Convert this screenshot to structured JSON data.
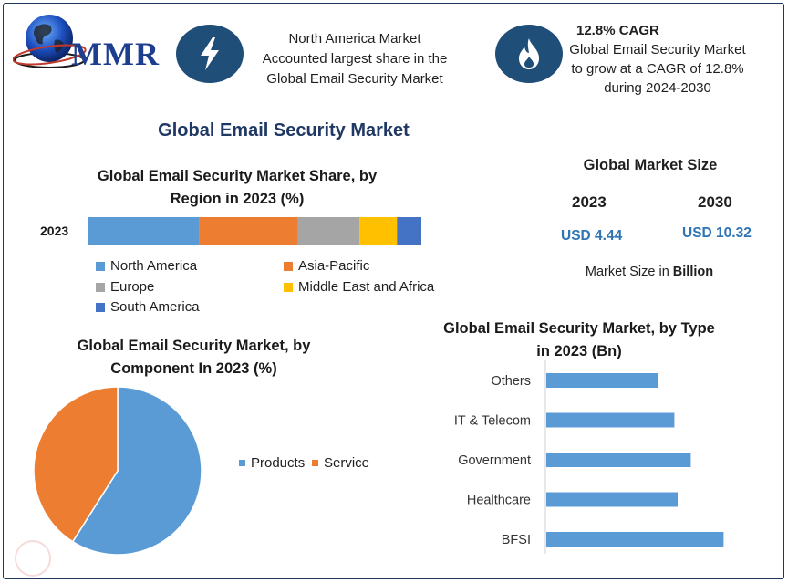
{
  "logo": {
    "text": "MMR"
  },
  "highlight_left": {
    "icon": "lightning-bolt-icon",
    "lines": [
      "North America Market",
      "Accounted largest share in the",
      "Global Email Security Market"
    ]
  },
  "highlight_right": {
    "icon": "flame-icon",
    "title": "12.8% CAGR",
    "lines": [
      "Global Email Security Market",
      "to grow at a CAGR of 12.8%",
      "during 2024-2030"
    ]
  },
  "main_title": "Global Email Security Market",
  "market_size": {
    "title": "Global Market Size",
    "year_a": "2023",
    "year_b": "2030",
    "value_a": "USD 4.44",
    "value_b": "USD 10.32",
    "note_prefix": "Market Size in ",
    "note_bold": "Billion"
  },
  "chart_data": [
    {
      "type": "bar",
      "orientation": "horizontal-stacked",
      "title_lines": [
        "Global Email Security Market Share, by",
        "Region in 2023 (%)"
      ],
      "categories": [
        "2023"
      ],
      "xlim": [
        0,
        100
      ],
      "series": [
        {
          "name": "North America",
          "values": [
            33.5
          ],
          "color": "#5b9bd5"
        },
        {
          "name": "Asia-Pacific",
          "values": [
            29.5
          ],
          "color": "#ed7d31"
        },
        {
          "name": "Europe",
          "values": [
            18.5
          ],
          "color": "#a5a5a5"
        },
        {
          "name": "Middle East and Africa",
          "values": [
            11.2
          ],
          "color": "#ffc000"
        },
        {
          "name": "South America",
          "values": [
            7.3
          ],
          "color": "#4472c4"
        }
      ],
      "legend": "bottom"
    },
    {
      "type": "pie",
      "title_lines": [
        "Global Email Security Market, by",
        "Component In 2023 (%)"
      ],
      "slices": [
        {
          "name": "Products",
          "value": 59,
          "color": "#5b9bd5"
        },
        {
          "name": "Service",
          "value": 41,
          "color": "#ed7d31"
        }
      ],
      "legend": "right"
    },
    {
      "type": "bar",
      "orientation": "horizontal",
      "title_lines": [
        "Global Email Security Market, by Type",
        "in 2023 (Bn)"
      ],
      "categories": [
        "Others",
        "IT & Telecom",
        "Government",
        "Healthcare",
        "BFSI"
      ],
      "values": [
        0.68,
        0.78,
        0.88,
        0.8,
        1.08
      ],
      "xlim": [
        0,
        1.2
      ],
      "color": "#5b9bd5"
    }
  ]
}
